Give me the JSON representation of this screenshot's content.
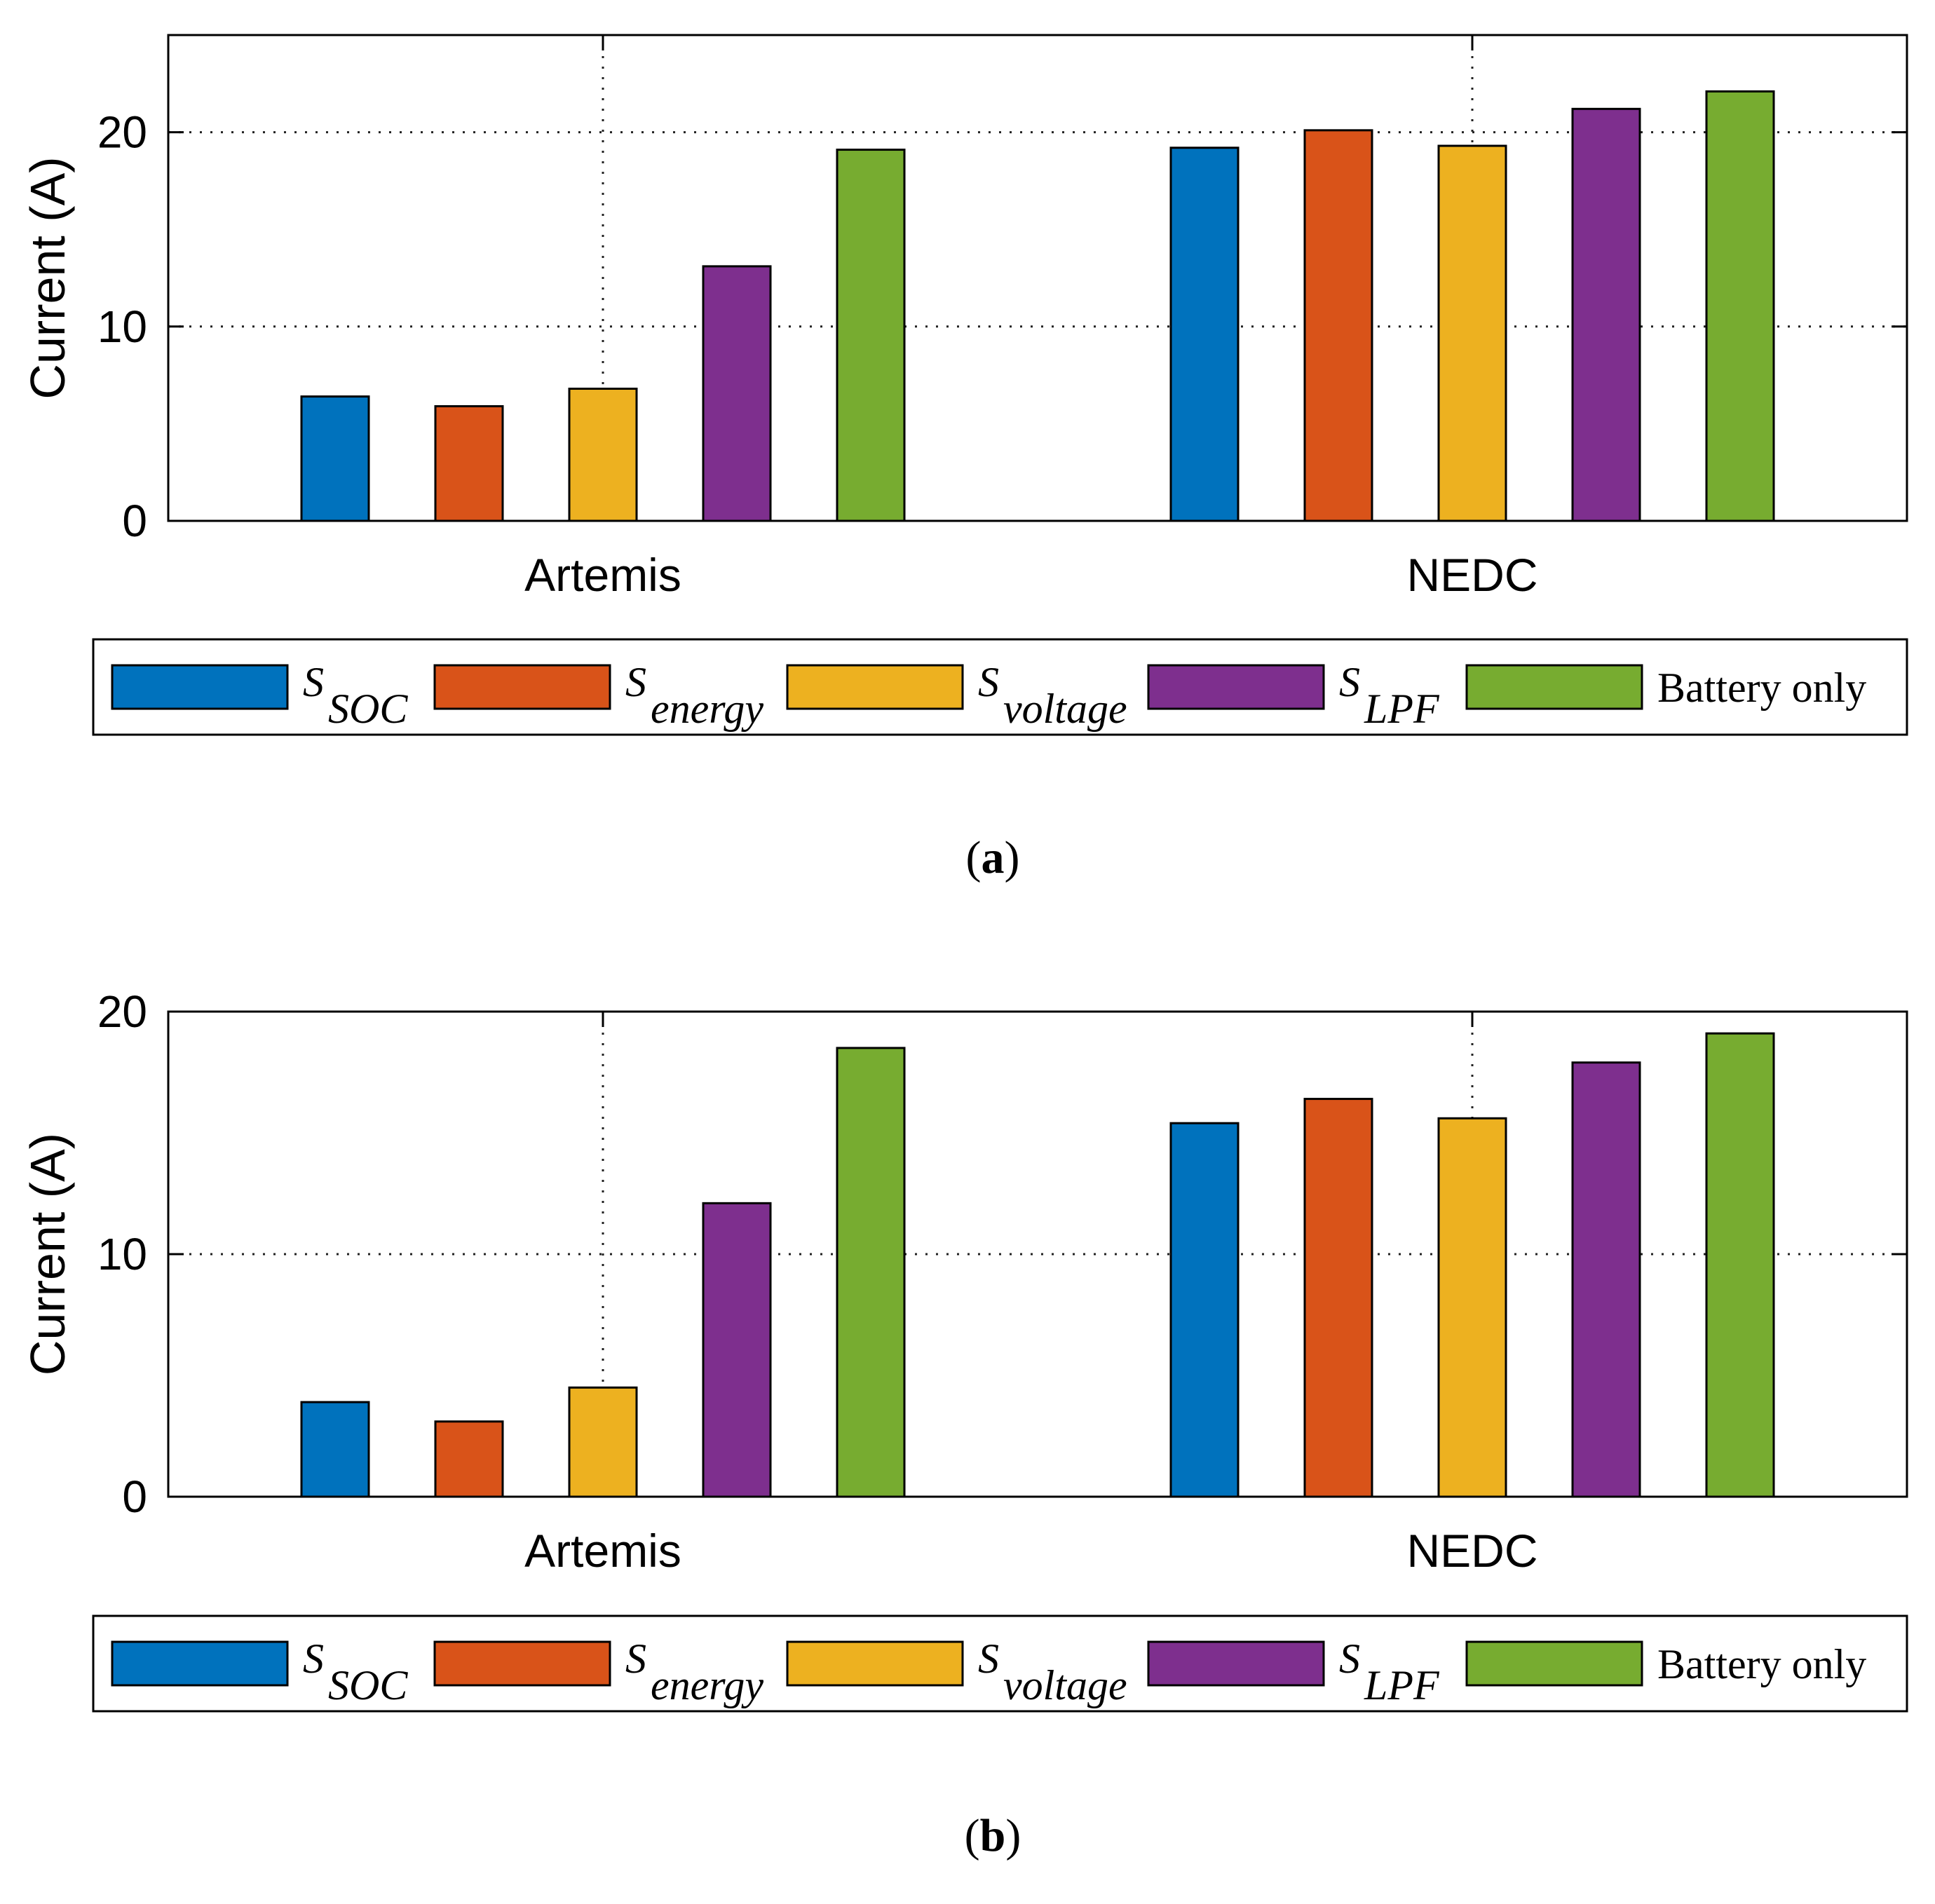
{
  "colors": {
    "S_SOC": "#0072BD",
    "S_energy": "#D95319",
    "S_voltage": "#EDB120",
    "S_LPF": "#7E2F8E",
    "battery_only": "#77AC30"
  },
  "chart_data": [
    {
      "type": "bar",
      "panel": "(a)",
      "caption_letter": "a",
      "categories": [
        "Artemis",
        "NEDC"
      ],
      "ylabel": "Current (A)",
      "xlabel": "",
      "ylim": [
        0,
        25
      ],
      "yticks": [
        "0",
        "10",
        "20"
      ],
      "grid": true,
      "legend_position": "bottom",
      "series": [
        {
          "name": "S_SOC",
          "legend_base": "S",
          "legend_sub": "SOC",
          "color_key": "S_SOC",
          "values": [
            6.4,
            19.2
          ]
        },
        {
          "name": "S_energy",
          "legend_base": "S",
          "legend_sub": "energy",
          "color_key": "S_energy",
          "values": [
            5.9,
            20.1
          ]
        },
        {
          "name": "S_voltage",
          "legend_base": "S",
          "legend_sub": "voltage",
          "color_key": "S_voltage",
          "values": [
            6.8,
            19.3
          ]
        },
        {
          "name": "S_LPF",
          "legend_base": "S",
          "legend_sub": "LPF",
          "color_key": "S_LPF",
          "values": [
            13.1,
            21.2
          ]
        },
        {
          "name": "Battery only",
          "legend_base": "Battery only",
          "legend_sub": "",
          "color_key": "battery_only",
          "values": [
            19.1,
            22.1
          ]
        }
      ]
    },
    {
      "type": "bar",
      "panel": "(b)",
      "caption_letter": "b",
      "categories": [
        "Artemis",
        "NEDC"
      ],
      "ylabel": "Current (A)",
      "xlabel": "",
      "ylim": [
        0,
        20
      ],
      "yticks": [
        "0",
        "10",
        "20"
      ],
      "grid": true,
      "legend_position": "bottom",
      "series": [
        {
          "name": "S_SOC",
          "legend_base": "S",
          "legend_sub": "SOC",
          "color_key": "S_SOC",
          "values": [
            3.9,
            15.4
          ]
        },
        {
          "name": "S_energy",
          "legend_base": "S",
          "legend_sub": "energy",
          "color_key": "S_energy",
          "values": [
            3.1,
            16.4
          ]
        },
        {
          "name": "S_voltage",
          "legend_base": "S",
          "legend_sub": "voltage",
          "color_key": "S_voltage",
          "values": [
            4.5,
            15.6
          ]
        },
        {
          "name": "S_LPF",
          "legend_base": "S",
          "legend_sub": "LPF",
          "color_key": "S_LPF",
          "values": [
            12.1,
            17.9
          ]
        },
        {
          "name": "Battery only",
          "legend_base": "Battery only",
          "legend_sub": "",
          "color_key": "battery_only",
          "values": [
            18.5,
            19.1
          ]
        }
      ]
    }
  ]
}
